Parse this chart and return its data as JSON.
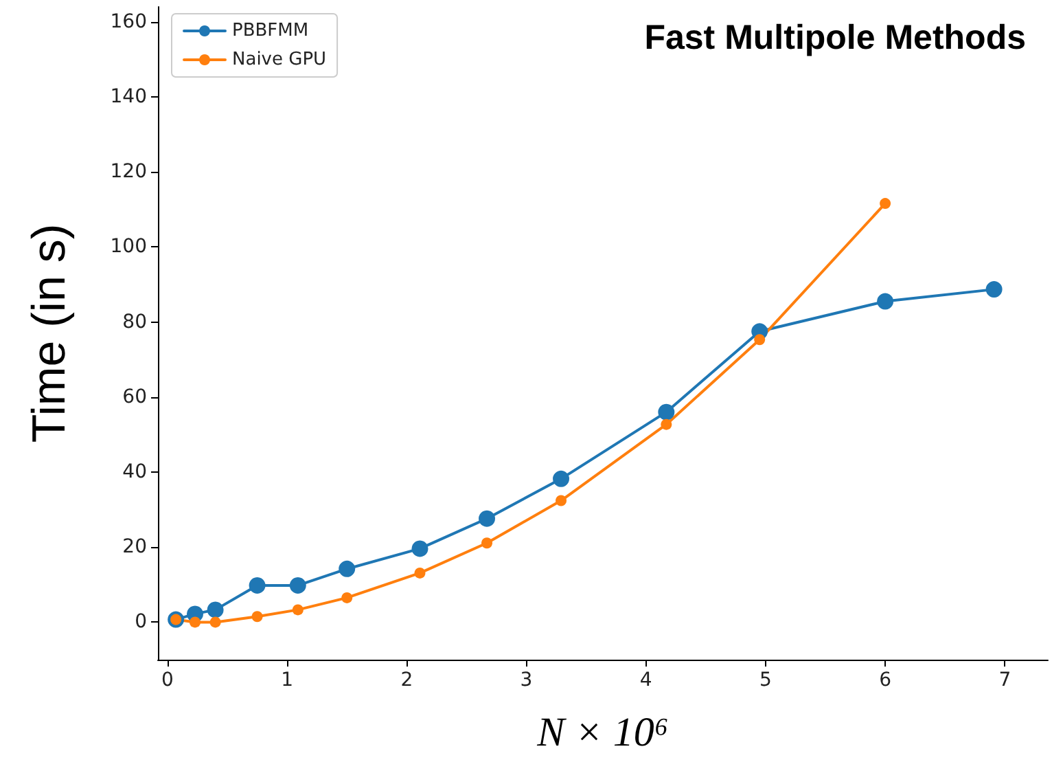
{
  "chart_data": {
    "type": "line",
    "title": "Fast Multipole Methods",
    "xlabel": "N × 10⁶",
    "ylabel": "Time (in s)",
    "x": [
      0.07,
      0.23,
      0.4,
      0.75,
      1.09,
      1.5,
      2.11,
      2.67,
      3.29,
      4.17,
      4.95,
      6.0,
      6.91
    ],
    "series": [
      {
        "name": "PBBFMM",
        "color": "#1f77b4",
        "values": [
          0.7,
          2.2,
          3.3,
          9.8,
          9.8,
          14.2,
          19.6,
          27.6,
          38.2,
          56,
          77.5,
          85.5,
          88.7
        ]
      },
      {
        "name": "Naive GPU",
        "color": "#ff7f0e",
        "values": [
          0.7,
          0,
          0,
          1.5,
          3.3,
          6.5,
          13.1,
          21.1,
          32.4,
          52.7,
          75.3,
          111.6,
          null
        ]
      }
    ],
    "xlim": [
      -0.08,
      7.36
    ],
    "ylim": [
      -10,
      164
    ],
    "xticks": [
      0,
      1,
      2,
      3,
      4,
      5,
      6,
      7
    ],
    "yticks": [
      0,
      20,
      40,
      60,
      80,
      100,
      120,
      140,
      160
    ],
    "grid": false,
    "legend": "top left",
    "marker": "circle",
    "line_style": "solid"
  }
}
